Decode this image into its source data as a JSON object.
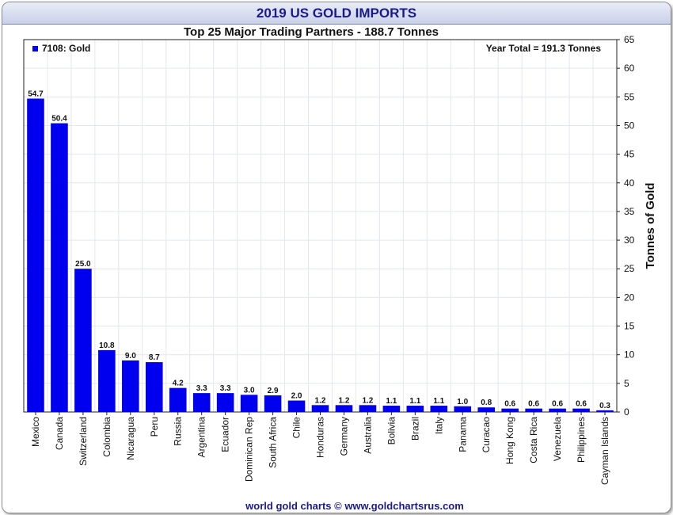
{
  "chart_data": {
    "type": "bar",
    "title": "2019 US GOLD IMPORTS",
    "subtitle": "Top 25 Major Trading Partners - 188.7 Tonnes",
    "annotation": "Year Total = 191.3 Tonnes",
    "ylabel": "Tonnes of Gold",
    "ylim": [
      0,
      65
    ],
    "yticks": [
      0,
      5,
      10,
      15,
      20,
      25,
      30,
      35,
      40,
      45,
      50,
      55,
      60,
      65
    ],
    "grid": true,
    "legend_position": "top-left",
    "series": [
      {
        "name": "7108: Gold",
        "color": "#0000ee",
        "values": [
          54.7,
          50.4,
          25.0,
          10.8,
          9.0,
          8.7,
          4.2,
          3.3,
          3.3,
          3.0,
          2.9,
          2.0,
          1.2,
          1.2,
          1.2,
          1.1,
          1.1,
          1.1,
          1.0,
          0.8,
          0.6,
          0.6,
          0.6,
          0.6,
          0.3
        ],
        "labels": [
          "54.7",
          "50.4",
          "25.0",
          "10.8",
          "9.0",
          "8.7",
          "4.2",
          "3.3",
          "3.3",
          "3.0",
          "2.9",
          "2.0",
          "1.2",
          "1.2",
          "1.2",
          "1.1",
          "1.1",
          "1.1",
          "1.0",
          "0.8",
          "0.6",
          "0.6",
          "0.6",
          "0.6",
          "0.3"
        ]
      }
    ],
    "categories": [
      "Mexico",
      "Canada",
      "Switzerland",
      "Colombia",
      "Nicaragua",
      "Peru",
      "Russia",
      "Argentina",
      "Ecuador",
      "Dominican Rep",
      "South Africa",
      "Chile",
      "Honduras",
      "Germany",
      "Australia",
      "Bolivia",
      "Brazil",
      "Italy",
      "Panama",
      "Curacao",
      "Hong Kong",
      "Costa Rica",
      "Venezuela",
      "Philippines",
      "Cayman Islands"
    ],
    "footer": "world gold charts © www.goldchartsrus.com"
  }
}
